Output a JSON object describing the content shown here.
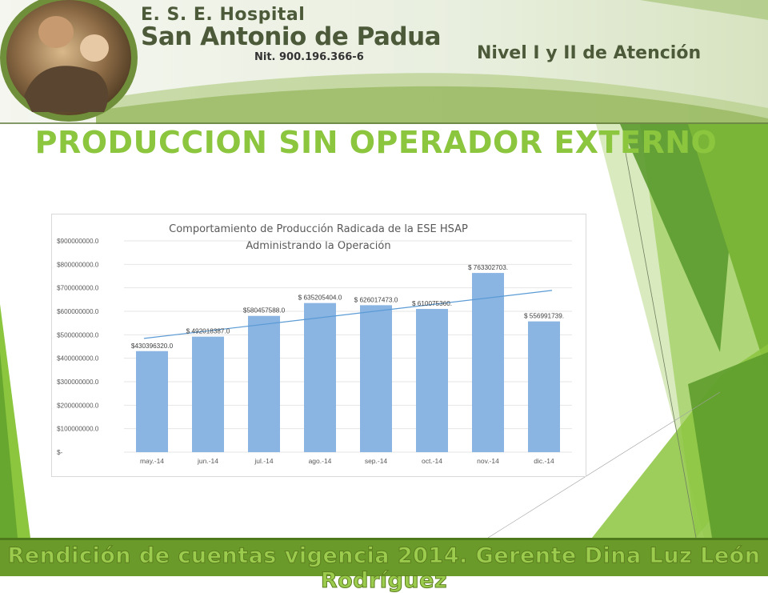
{
  "header": {
    "hospital_line1": "E. S. E. Hospital",
    "hospital_line2": "San Antonio de Padua",
    "nit": "Nit. 900.196.366-6",
    "nivel": "Nivel I y II de Atención"
  },
  "page_title": "PRODUCCION SIN OPERADOR EXTERNO",
  "footer": "Rendición de cuentas vigencia 2014. Gerente Dina Luz León Rodríguez",
  "colors": {
    "accent_green": "#8cc63f",
    "bar_blue": "#8ab4e2",
    "trend_line": "#5b9bd5"
  },
  "chart_data": {
    "type": "bar",
    "title": [
      "Comportamiento de Producción Radicada de la ESE HSAP",
      "Administrando la Operación"
    ],
    "categories": [
      "may.-14",
      "jun.-14",
      "jul.-14",
      "ago.-14",
      "sep.-14",
      "oct.-14",
      "nov.-14",
      "dic.-14"
    ],
    "values": [
      430396320,
      492018387,
      580457588,
      635205404,
      626017473,
      610075360,
      763302703,
      556991739
    ],
    "data_labels": [
      "$430396320.0",
      "$ 492018387.0",
      "$580457588.0",
      "$ 635205404.0",
      "$ 626017473.0",
      "$ 610075360.",
      "$ 763302703.",
      "$ 556991739."
    ],
    "ylim": [
      0,
      900000000
    ],
    "yticks": [
      0,
      100000000,
      200000000,
      300000000,
      400000000,
      500000000,
      600000000,
      700000000,
      800000000,
      900000000
    ],
    "ytick_labels": [
      "$-",
      "$100000000.0",
      "$200000000.0",
      "$300000000.0",
      "$400000000.0",
      "$500000000.0",
      "$600000000.0",
      "$700000000.0",
      "$800000000.0",
      "$900000000.0"
    ],
    "trendline": "linear",
    "grid": true,
    "legend": "none"
  }
}
